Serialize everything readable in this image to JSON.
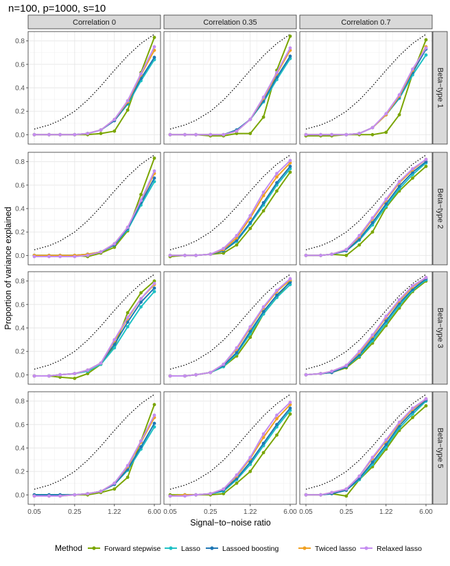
{
  "title": "n=100, p=1000, s=10",
  "colors": {
    "Forward stepwise": "#7aa500",
    "Lasso": "#1ec0c4",
    "Lassoed boosting": "#1f77b4",
    "Twiced lasso": "#f0a020",
    "Relaxed lasso": "#c48cf0",
    "oracle": "#000000"
  },
  "chart_data": {
    "type": "line",
    "xlabel": "Signal−to−noise ratio",
    "ylabel": "Proportion of variance explained",
    "x": [
      0.05,
      0.09,
      0.14,
      0.25,
      0.42,
      0.71,
      1.22,
      2.07,
      3.52,
      6.0
    ],
    "xticks": [
      0.05,
      0.25,
      1.22,
      6.0
    ],
    "xtick_labels": [
      "0.05",
      "0.25",
      "1.22",
      "6.00"
    ],
    "xscale": "log",
    "ylim": [
      -0.08,
      0.88
    ],
    "yticks": [
      0.0,
      0.2,
      0.4,
      0.6,
      0.8
    ],
    "ytick_labels": [
      "0.0",
      "0.2",
      "0.4",
      "0.6",
      "0.8"
    ],
    "columns": [
      "Correlation 0",
      "Correlation 0.35",
      "Correlation 0.7"
    ],
    "rows": [
      "Beta−type 1",
      "Beta−type 2",
      "Beta−type 3",
      "Beta−type 5"
    ],
    "legend": {
      "title": "Method",
      "entries": [
        "Forward stepwise",
        "Lasso",
        "Lassoed boosting",
        "Twiced lasso",
        "Relaxed lasso"
      ]
    },
    "oracle": [
      0.048,
      0.083,
      0.123,
      0.2,
      0.296,
      0.415,
      0.55,
      0.674,
      0.779,
      0.857
    ],
    "panels": [
      {
        "row": 0,
        "col": 0,
        "series": {
          "Forward stepwise": [
            0.0,
            0.0,
            0.0,
            0.0,
            0.0,
            0.01,
            0.03,
            0.21,
            0.53,
            0.83
          ],
          "Lasso": [
            0.0,
            0.0,
            0.0,
            0.0,
            0.01,
            0.04,
            0.12,
            0.26,
            0.46,
            0.64
          ],
          "Lassoed boosting": [
            0.0,
            0.0,
            0.0,
            0.0,
            0.01,
            0.04,
            0.12,
            0.27,
            0.48,
            0.66
          ],
          "Twiced lasso": [
            0.0,
            0.0,
            0.0,
            0.0,
            0.01,
            0.04,
            0.13,
            0.28,
            0.51,
            0.72
          ],
          "Relaxed lasso": [
            0.0,
            0.0,
            0.0,
            0.0,
            0.01,
            0.04,
            0.13,
            0.29,
            0.52,
            0.75
          ]
        }
      },
      {
        "row": 0,
        "col": 1,
        "series": {
          "Forward stepwise": [
            0.0,
            0.0,
            0.0,
            -0.01,
            -0.01,
            0.01,
            0.01,
            0.15,
            0.55,
            0.84
          ],
          "Lasso": [
            0.0,
            0.0,
            0.0,
            0.0,
            0.0,
            0.04,
            0.13,
            0.28,
            0.47,
            0.65
          ],
          "Lassoed boosting": [
            0.0,
            0.0,
            0.0,
            0.0,
            0.0,
            0.04,
            0.13,
            0.29,
            0.49,
            0.67
          ],
          "Twiced lasso": [
            0.0,
            0.0,
            0.0,
            0.0,
            0.0,
            0.03,
            0.13,
            0.31,
            0.52,
            0.72
          ],
          "Relaxed lasso": [
            0.0,
            0.0,
            0.0,
            0.0,
            0.0,
            0.03,
            0.13,
            0.32,
            0.53,
            0.74
          ]
        }
      },
      {
        "row": 0,
        "col": 2,
        "series": {
          "Forward stepwise": [
            -0.01,
            -0.01,
            -0.01,
            0.0,
            0.0,
            0.0,
            0.02,
            0.17,
            0.52,
            0.81
          ],
          "Lasso": [
            0.0,
            0.0,
            0.0,
            0.0,
            0.01,
            0.06,
            0.17,
            0.31,
            0.51,
            0.68
          ],
          "Lassoed boosting": [
            0.0,
            0.0,
            0.0,
            0.0,
            0.01,
            0.06,
            0.17,
            0.32,
            0.53,
            0.73
          ],
          "Twiced lasso": [
            0.0,
            0.0,
            0.0,
            0.0,
            0.01,
            0.06,
            0.17,
            0.33,
            0.55,
            0.75
          ],
          "Relaxed lasso": [
            0.0,
            0.0,
            0.0,
            0.0,
            0.01,
            0.06,
            0.18,
            0.34,
            0.56,
            0.74
          ]
        }
      },
      {
        "row": 1,
        "col": 0,
        "series": {
          "Forward stepwise": [
            0.0,
            0.0,
            0.0,
            0.0,
            -0.01,
            0.02,
            0.07,
            0.21,
            0.52,
            0.83
          ],
          "Lasso": [
            0.0,
            0.0,
            0.0,
            0.0,
            0.01,
            0.03,
            0.09,
            0.22,
            0.43,
            0.63
          ],
          "Lassoed boosting": [
            0.0,
            0.0,
            0.0,
            0.0,
            0.01,
            0.03,
            0.09,
            0.23,
            0.45,
            0.66
          ],
          "Twiced lasso": [
            0.0,
            0.0,
            0.0,
            0.0,
            0.01,
            0.03,
            0.1,
            0.24,
            0.47,
            0.7
          ],
          "Relaxed lasso": [
            -0.01,
            -0.01,
            -0.01,
            -0.01,
            0.0,
            0.03,
            0.1,
            0.24,
            0.47,
            0.72
          ]
        }
      },
      {
        "row": 1,
        "col": 1,
        "series": {
          "Forward stepwise": [
            -0.01,
            0.0,
            0.0,
            0.01,
            0.02,
            0.09,
            0.23,
            0.38,
            0.55,
            0.71
          ],
          "Lasso": [
            0.0,
            0.0,
            0.0,
            0.01,
            0.04,
            0.12,
            0.27,
            0.43,
            0.6,
            0.74
          ],
          "Lassoed boosting": [
            0.0,
            0.0,
            0.0,
            0.01,
            0.04,
            0.13,
            0.28,
            0.45,
            0.62,
            0.76
          ],
          "Twiced lasso": [
            0.0,
            0.0,
            0.0,
            0.01,
            0.05,
            0.15,
            0.32,
            0.51,
            0.67,
            0.79
          ],
          "Relaxed lasso": [
            0.0,
            0.0,
            0.0,
            0.01,
            0.06,
            0.17,
            0.34,
            0.54,
            0.7,
            0.81
          ]
        }
      },
      {
        "row": 1,
        "col": 2,
        "series": {
          "Forward stepwise": [
            0.0,
            0.0,
            0.01,
            0.0,
            0.09,
            0.2,
            0.41,
            0.55,
            0.66,
            0.76
          ],
          "Lasso": [
            0.0,
            0.0,
            0.01,
            0.04,
            0.13,
            0.26,
            0.42,
            0.57,
            0.69,
            0.79
          ],
          "Lassoed boosting": [
            0.0,
            0.0,
            0.01,
            0.04,
            0.14,
            0.28,
            0.44,
            0.59,
            0.71,
            0.8
          ],
          "Twiced lasso": [
            0.0,
            0.0,
            0.01,
            0.05,
            0.16,
            0.31,
            0.47,
            0.62,
            0.73,
            0.82
          ],
          "Relaxed lasso": [
            0.0,
            0.0,
            0.01,
            0.05,
            0.17,
            0.32,
            0.48,
            0.63,
            0.74,
            0.82
          ]
        }
      },
      {
        "row": 2,
        "col": 0,
        "series": {
          "Forward stepwise": [
            -0.01,
            -0.01,
            -0.02,
            -0.03,
            0.01,
            0.09,
            0.24,
            0.53,
            0.7,
            0.8
          ],
          "Lasso": [
            -0.01,
            -0.01,
            0.0,
            0.01,
            0.03,
            0.09,
            0.23,
            0.41,
            0.58,
            0.71
          ],
          "Lassoed boosting": [
            -0.01,
            -0.01,
            0.0,
            0.01,
            0.04,
            0.1,
            0.26,
            0.45,
            0.62,
            0.74
          ],
          "Twiced lasso": [
            -0.01,
            -0.01,
            0.0,
            0.01,
            0.04,
            0.1,
            0.29,
            0.48,
            0.65,
            0.77
          ],
          "Relaxed lasso": [
            -0.01,
            -0.01,
            0.0,
            0.01,
            0.04,
            0.1,
            0.3,
            0.49,
            0.65,
            0.78
          ]
        }
      },
      {
        "row": 2,
        "col": 1,
        "series": {
          "Forward stepwise": [
            -0.01,
            -0.01,
            0.0,
            0.02,
            0.07,
            0.16,
            0.32,
            0.52,
            0.66,
            0.8
          ],
          "Lasso": [
            -0.01,
            -0.01,
            0.0,
            0.02,
            0.07,
            0.18,
            0.35,
            0.52,
            0.66,
            0.77
          ],
          "Lassoed boosting": [
            -0.01,
            -0.01,
            0.0,
            0.02,
            0.08,
            0.19,
            0.37,
            0.54,
            0.68,
            0.79
          ],
          "Twiced lasso": [
            -0.01,
            -0.01,
            0.0,
            0.02,
            0.09,
            0.22,
            0.4,
            0.57,
            0.71,
            0.81
          ],
          "Relaxed lasso": [
            -0.01,
            -0.01,
            0.0,
            0.02,
            0.09,
            0.23,
            0.41,
            0.58,
            0.72,
            0.82
          ]
        }
      },
      {
        "row": 2,
        "col": 2,
        "series": {
          "Forward stepwise": [
            0.0,
            0.01,
            0.02,
            0.06,
            0.15,
            0.27,
            0.42,
            0.57,
            0.71,
            0.8
          ],
          "Lasso": [
            0.0,
            0.01,
            0.02,
            0.07,
            0.16,
            0.29,
            0.44,
            0.59,
            0.72,
            0.81
          ],
          "Lassoed boosting": [
            0.0,
            0.01,
            0.02,
            0.07,
            0.17,
            0.31,
            0.46,
            0.61,
            0.73,
            0.82
          ],
          "Twiced lasso": [
            0.0,
            0.01,
            0.03,
            0.08,
            0.19,
            0.33,
            0.49,
            0.63,
            0.75,
            0.83
          ],
          "Relaxed lasso": [
            0.0,
            0.01,
            0.03,
            0.08,
            0.2,
            0.34,
            0.5,
            0.64,
            0.76,
            0.83
          ]
        }
      },
      {
        "row": 3,
        "col": 0,
        "series": {
          "Forward stepwise": [
            0.0,
            0.0,
            0.0,
            0.0,
            0.0,
            0.02,
            0.05,
            0.15,
            0.46,
            0.77
          ],
          "Lasso": [
            0.0,
            0.0,
            0.0,
            0.0,
            0.01,
            0.03,
            0.09,
            0.21,
            0.39,
            0.58
          ],
          "Lassoed boosting": [
            0.0,
            0.0,
            0.0,
            0.0,
            0.01,
            0.03,
            0.09,
            0.22,
            0.41,
            0.61
          ],
          "Twiced lasso": [
            -0.01,
            -0.01,
            -0.01,
            0.0,
            0.01,
            0.03,
            0.1,
            0.24,
            0.45,
            0.66
          ],
          "Relaxed lasso": [
            -0.01,
            -0.01,
            -0.01,
            0.0,
            0.01,
            0.03,
            0.1,
            0.25,
            0.46,
            0.68
          ]
        }
      },
      {
        "row": 3,
        "col": 1,
        "series": {
          "Forward stepwise": [
            0.0,
            0.0,
            0.0,
            0.0,
            0.01,
            0.1,
            0.2,
            0.36,
            0.51,
            0.69
          ],
          "Lasso": [
            -0.01,
            0.0,
            0.0,
            0.01,
            0.03,
            0.13,
            0.26,
            0.42,
            0.58,
            0.72
          ],
          "Lassoed boosting": [
            -0.01,
            0.0,
            0.0,
            0.01,
            0.04,
            0.14,
            0.28,
            0.44,
            0.6,
            0.74
          ],
          "Twiced lasso": [
            -0.01,
            0.0,
            0.0,
            0.01,
            0.05,
            0.16,
            0.31,
            0.49,
            0.65,
            0.77
          ],
          "Relaxed lasso": [
            -0.01,
            -0.01,
            0.0,
            0.01,
            0.05,
            0.17,
            0.32,
            0.52,
            0.68,
            0.79
          ]
        }
      },
      {
        "row": 3,
        "col": 2,
        "series": {
          "Forward stepwise": [
            0.0,
            0.0,
            0.01,
            -0.01,
            0.13,
            0.24,
            0.39,
            0.55,
            0.66,
            0.76
          ],
          "Lasso": [
            0.0,
            0.0,
            0.01,
            0.04,
            0.13,
            0.26,
            0.41,
            0.57,
            0.69,
            0.8
          ],
          "Lassoed boosting": [
            0.0,
            0.0,
            0.01,
            0.04,
            0.14,
            0.28,
            0.43,
            0.59,
            0.71,
            0.81
          ],
          "Twiced lasso": [
            0.0,
            0.0,
            0.02,
            0.05,
            0.16,
            0.31,
            0.46,
            0.61,
            0.73,
            0.82
          ],
          "Relaxed lasso": [
            0.0,
            0.0,
            0.02,
            0.05,
            0.16,
            0.32,
            0.47,
            0.62,
            0.74,
            0.82
          ]
        }
      }
    ]
  }
}
